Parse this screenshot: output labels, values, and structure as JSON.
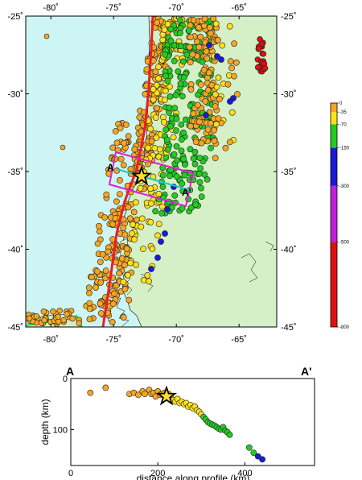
{
  "map": {
    "lon_ticks": [
      "-80˚",
      "-75˚",
      "-70˚",
      "-65˚"
    ],
    "lat_ticks": [
      "-25˚",
      "-30˚",
      "-35˚",
      "-40˚",
      "-45˚"
    ],
    "lon_range": [
      -82,
      -62
    ],
    "lat_range": [
      -45,
      -25
    ],
    "section_start_label": "A",
    "section_end_label": "A'",
    "colors": {
      "ocean": "#cdf5f3",
      "land": "#d5efc6",
      "trench": "#ee1c25",
      "box": "#e020d0",
      "section_line": "#17c7c9"
    }
  },
  "depth_scale": {
    "labels": [
      "0",
      "-35",
      "-70",
      "-150",
      "-300",
      "-500",
      "-800"
    ],
    "bands": [
      {
        "from": 0,
        "to": 35,
        "color": "#f5a623"
      },
      {
        "from": 35,
        "to": 70,
        "color": "#ffe119"
      },
      {
        "from": 70,
        "to": 150,
        "color": "#22cc22"
      },
      {
        "from": 150,
        "to": 300,
        "color": "#1a1ad8"
      },
      {
        "from": 300,
        "to": 500,
        "color": "#c020d8"
      },
      {
        "from": 500,
        "to": 800,
        "color": "#dd1111"
      }
    ]
  },
  "profile": {
    "start_label": "A",
    "end_label": "A'",
    "ylabel": "depth (km)",
    "xlabel": "distance along profile (km)",
    "x_ticks": [
      "0",
      "200",
      "400"
    ],
    "y_ticks": [
      "0",
      "100"
    ],
    "x_range": [
      0,
      560
    ],
    "y_range": [
      0,
      170
    ]
  },
  "chart_data": {
    "type": "scatter",
    "xlabel": "distance along profile (km)",
    "ylabel": "depth (km)",
    "xlim": [
      0,
      560
    ],
    "ylim": [
      170,
      0
    ],
    "points": [
      [
        45,
        28
      ],
      [
        80,
        18
      ],
      [
        135,
        30
      ],
      [
        145,
        28
      ],
      [
        155,
        32
      ],
      [
        165,
        25
      ],
      [
        170,
        30
      ],
      [
        180,
        22
      ],
      [
        185,
        30
      ],
      [
        190,
        28
      ],
      [
        195,
        35
      ],
      [
        200,
        25
      ],
      [
        205,
        32
      ],
      [
        210,
        30
      ],
      [
        215,
        28
      ],
      [
        220,
        34
      ],
      [
        225,
        30
      ],
      [
        230,
        38
      ],
      [
        235,
        42
      ],
      [
        240,
        45
      ],
      [
        245,
        40
      ],
      [
        250,
        48
      ],
      [
        255,
        45
      ],
      [
        260,
        50
      ],
      [
        265,
        48
      ],
      [
        270,
        55
      ],
      [
        275,
        52
      ],
      [
        280,
        58
      ],
      [
        285,
        55
      ],
      [
        290,
        62
      ],
      [
        295,
        65
      ],
      [
        300,
        70
      ],
      [
        305,
        75
      ],
      [
        310,
        80
      ],
      [
        315,
        85
      ],
      [
        320,
        88
      ],
      [
        325,
        90
      ],
      [
        330,
        92
      ],
      [
        335,
        95
      ],
      [
        340,
        98
      ],
      [
        345,
        100
      ],
      [
        350,
        95
      ],
      [
        355,
        102
      ],
      [
        360,
        105
      ],
      [
        365,
        110
      ],
      [
        410,
        135
      ],
      [
        420,
        145
      ],
      [
        430,
        152
      ],
      [
        440,
        158
      ]
    ],
    "mainshock": [
      220,
      35
    ]
  }
}
